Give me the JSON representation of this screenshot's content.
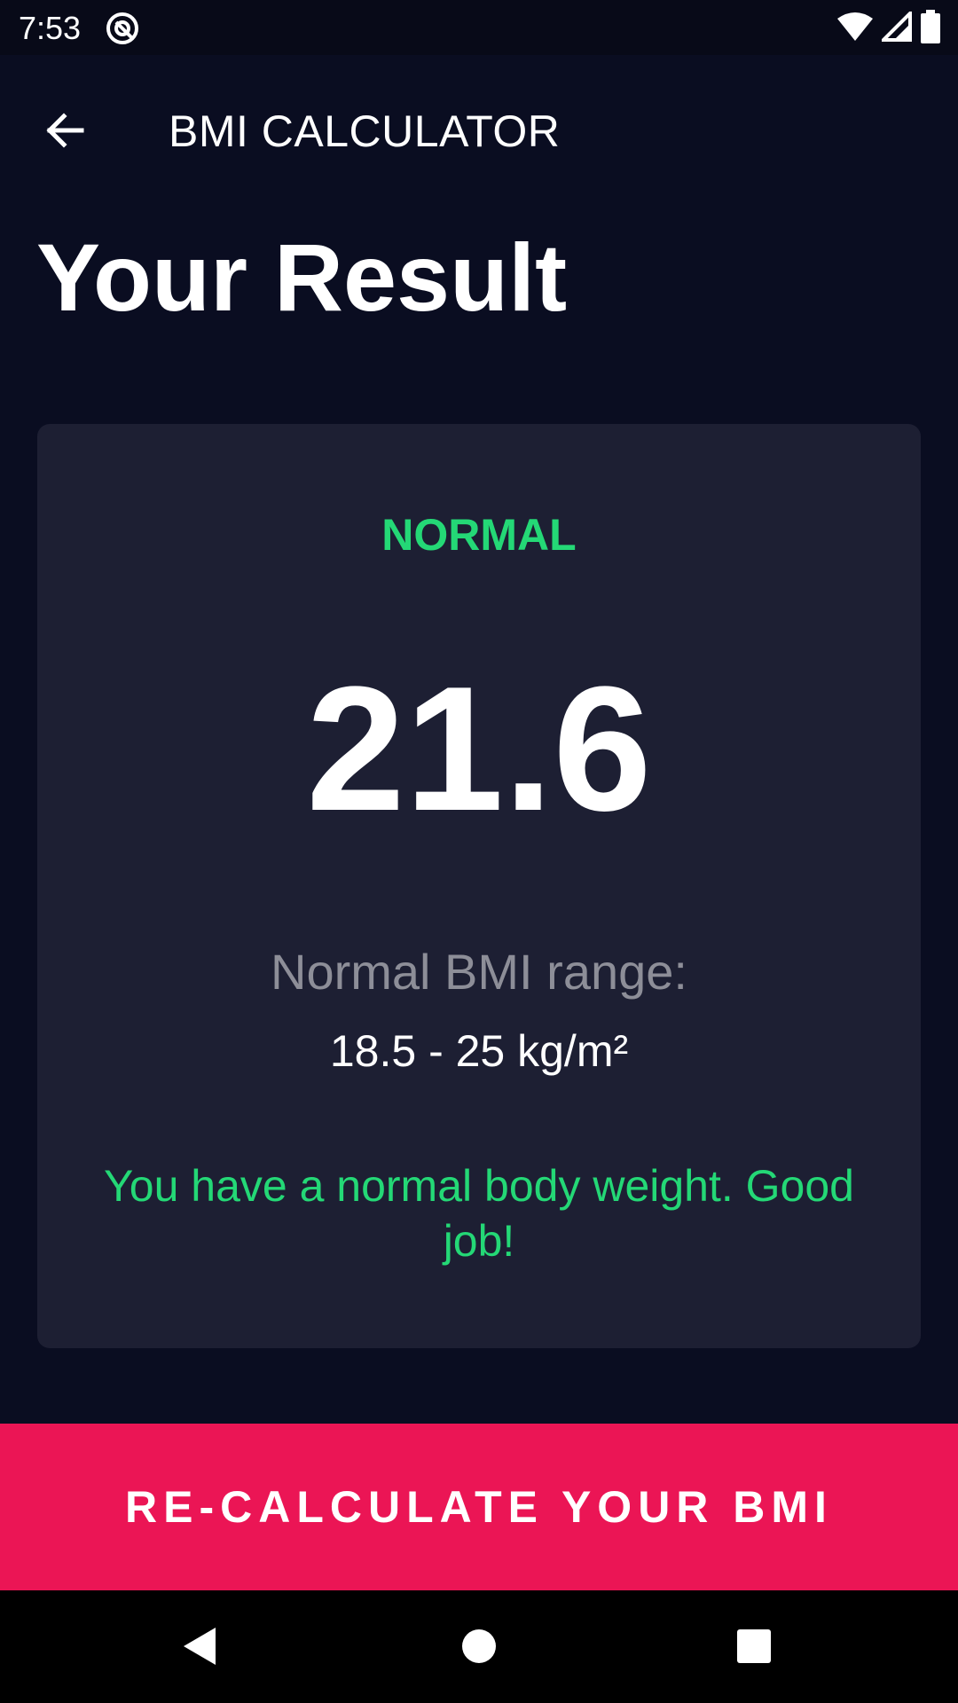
{
  "status_bar": {
    "time": "7:53",
    "icons": [
      "app-notification-icon",
      "wifi-icon",
      "signal-icon",
      "battery-icon"
    ]
  },
  "app_bar": {
    "title": "BMI CALCULATOR",
    "back_icon": "arrow-back-icon"
  },
  "page": {
    "title": "Your Result"
  },
  "result": {
    "status": "NORMAL",
    "bmi": "21.6",
    "range_label": "Normal BMI range:",
    "range_value": "18.5 - 25 kg/m²",
    "interpretation": "You have a normal body weight. Good job!"
  },
  "actions": {
    "recalculate_label": "RE-CALCULATE YOUR BMI"
  },
  "nav_bar": {
    "icons": [
      "back-triangle-icon",
      "home-circle-icon",
      "recents-square-icon"
    ]
  },
  "colors": {
    "background": "#0a0d21",
    "card": "#1d1f33",
    "accent": "#eb1555",
    "status_green": "#24d876",
    "muted_text": "#8d8e98"
  }
}
